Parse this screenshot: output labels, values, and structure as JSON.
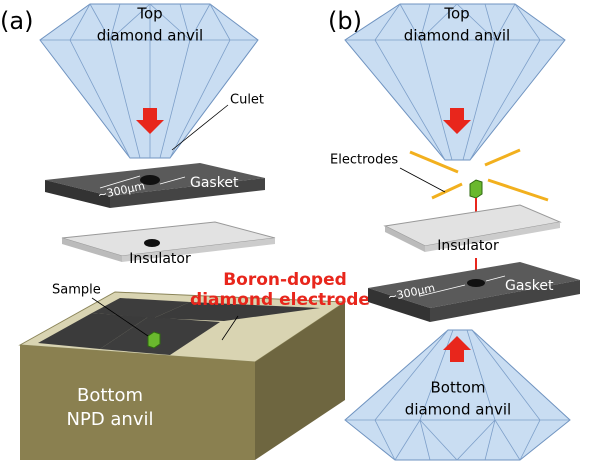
{
  "panels": [
    {
      "label": "(a)",
      "top_anvil": [
        "Top",
        "diamond anvil"
      ],
      "culet": "Culet",
      "gasket": "Gasket",
      "gasket_hole": "~300μm",
      "insulator": "Insulator",
      "sample": "Sample",
      "electrode": [
        "Boron-doped",
        "diamond electrode"
      ],
      "bottom_anvil": [
        "Bottom",
        "NPD anvil"
      ]
    },
    {
      "label": "(b)",
      "top_anvil": [
        "Top",
        "diamond anvil"
      ],
      "electrodes": "Electrodes",
      "insulator": "Insulator",
      "gasket": "Gasket",
      "gasket_hole": "~300μm",
      "bottom_anvil": [
        "Bottom",
        "diamond anvil"
      ]
    }
  ]
}
